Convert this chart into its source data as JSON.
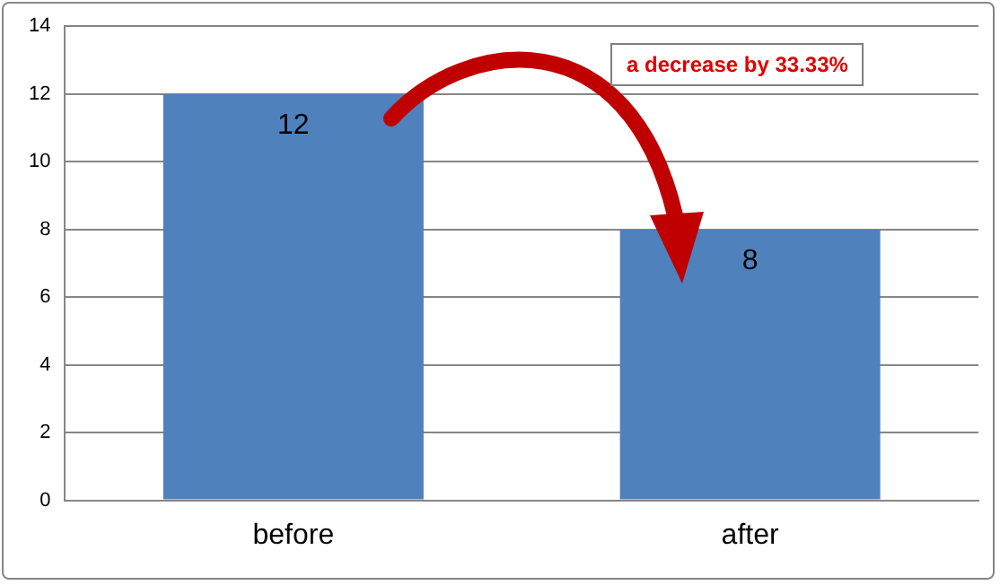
{
  "chart_data": {
    "type": "bar",
    "categories": [
      "before",
      "after"
    ],
    "values": [
      12,
      8
    ],
    "color": "#4f81bd",
    "ylim": [
      0,
      14
    ],
    "yticks": [
      0,
      2,
      4,
      6,
      8,
      10,
      12,
      14
    ],
    "grid": "y",
    "data_labels": true,
    "annotations": [
      "a decrease by 33.33%"
    ]
  }
}
